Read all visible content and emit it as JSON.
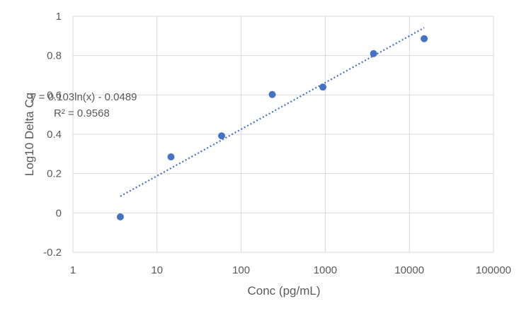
{
  "chart_data": {
    "type": "scatter",
    "title": "",
    "xlabel": "Conc (pg/mL)",
    "ylabel": "Log10 Delta Cq",
    "x_scale": "log",
    "xlim": [
      1,
      100000
    ],
    "ylim": [
      -0.2,
      1
    ],
    "x_ticks": [
      1,
      10,
      100,
      1000,
      10000,
      100000
    ],
    "x_tick_labels": [
      "1",
      "10",
      "100",
      "1000",
      "10000",
      "100000"
    ],
    "y_ticks": [
      -0.2,
      0,
      0.2,
      0.4,
      0.6,
      0.8,
      1
    ],
    "y_tick_labels": [
      "-0.2",
      "0",
      "0.2",
      "0.4",
      "0.6",
      "0.8",
      "1"
    ],
    "grid": true,
    "legend": "none",
    "series": [
      {
        "x": [
          3.66,
          14.65,
          58.6,
          234.4,
          937.5,
          3750,
          15000
        ],
        "y": [
          -0.02,
          0.285,
          0.392,
          0.602,
          0.64,
          0.81,
          0.886
        ],
        "color": "#4472c4",
        "marker": "circle"
      }
    ],
    "trendline": {
      "type": "logarithmic",
      "a": 0.103,
      "b": -0.0489,
      "x_range": [
        3.66,
        15000
      ],
      "color": "#4472c4",
      "style": "dotted",
      "equation_label": "y = 0.103ln(x) - 0.0489",
      "r2_label": "R² = 0.9568"
    }
  }
}
